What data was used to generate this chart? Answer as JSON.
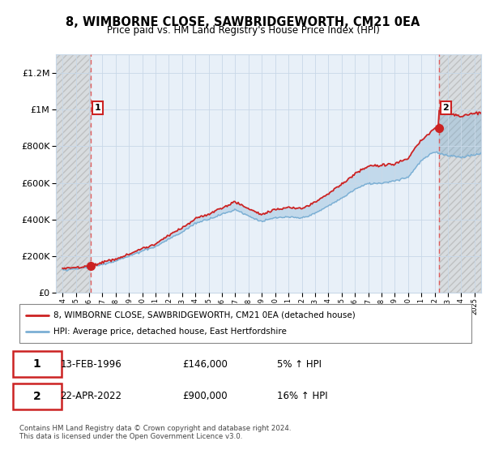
{
  "title": "8, WIMBORNE CLOSE, SAWBRIDGEWORTH, CM21 0EA",
  "subtitle": "Price paid vs. HM Land Registry's House Price Index (HPI)",
  "legend_line1": "8, WIMBORNE CLOSE, SAWBRIDGEWORTH, CM21 0EA (detached house)",
  "legend_line2": "HPI: Average price, detached house, East Hertfordshire",
  "sale1_date": "13-FEB-1996",
  "sale1_price": "£146,000",
  "sale1_hpi": "5% ↑ HPI",
  "sale1_year": 1996.1,
  "sale1_value": 146000,
  "sale2_date": "22-APR-2022",
  "sale2_price": "£900,000",
  "sale2_hpi": "16% ↑ HPI",
  "sale2_year": 2022.3,
  "sale2_value": 900000,
  "footer": "Contains HM Land Registry data © Crown copyright and database right 2024.\nThis data is licensed under the Open Government Licence v3.0.",
  "hpi_color": "#7bafd4",
  "price_color": "#cc2222",
  "grid_color": "#c8d8e8",
  "dashed_line_color": "#e05050",
  "bg_chart": "#e8f0f8",
  "hatch_bg": "#d8d8d8",
  "ylim_max": 1300000,
  "xlim_min": 1993.5,
  "xlim_max": 2025.5,
  "yticks": [
    0,
    200000,
    400000,
    600000,
    800000,
    1000000,
    1200000
  ],
  "ytick_labels": [
    "£0",
    "£200K",
    "£400K",
    "£600K",
    "£800K",
    "£1M",
    "£1.2M"
  ]
}
